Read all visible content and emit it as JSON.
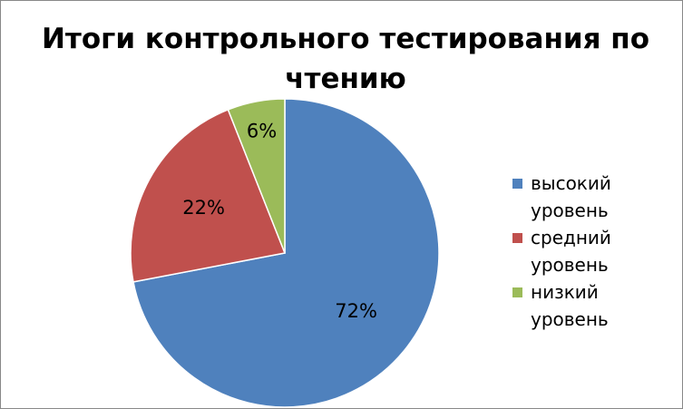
{
  "chart_data": {
    "type": "pie",
    "title": "Итоги контрольного тестирования по чтению",
    "categories": [
      "высокий уровень",
      "средний уровень",
      "низкий уровень"
    ],
    "values": [
      72,
      22,
      6
    ],
    "value_labels": [
      "72%",
      "22%",
      "6%"
    ],
    "colors": [
      "#4f81bd",
      "#c0504d",
      "#9bbb59"
    ],
    "legend": "right"
  }
}
